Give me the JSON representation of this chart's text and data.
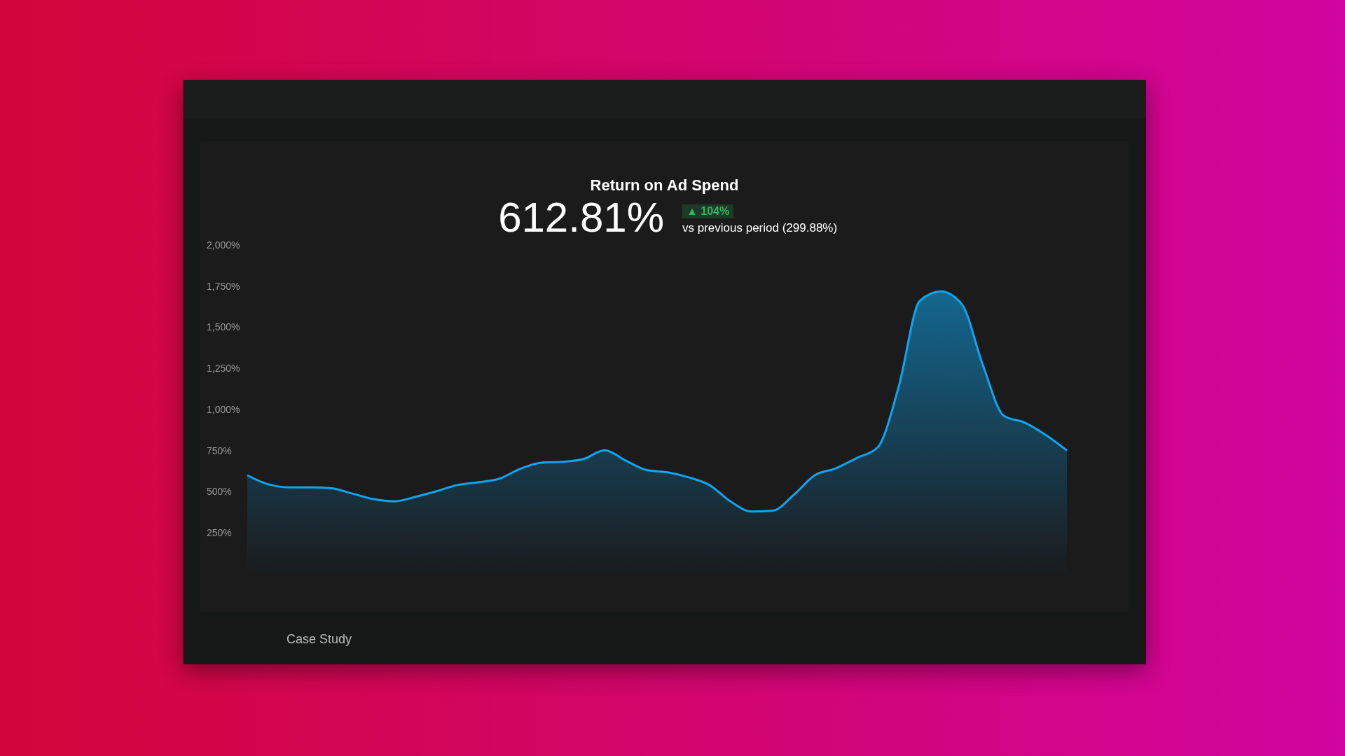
{
  "chart_data": {
    "type": "area",
    "title": "Return on Ad Spend",
    "subtitle": "612.81%",
    "annotations": [
      "▲ 104%",
      "vs previous period (299.88%)",
      "Case Study"
    ],
    "categories": [
      null,
      null,
      null,
      null,
      null,
      null,
      null,
      null,
      null,
      null,
      null,
      null,
      null,
      null,
      null,
      null,
      null,
      null,
      null,
      null,
      null,
      null,
      null,
      null,
      null,
      null,
      null,
      null,
      null,
      null,
      null,
      null,
      null,
      null,
      null,
      null,
      null,
      null,
      null,
      null
    ],
    "series": [
      {
        "color": "#0ea5f0",
        "values": [
          600,
          545,
          527,
          527,
          521,
          489,
          455,
          442,
          469,
          503,
          541,
          557,
          580,
          640,
          677,
          682,
          699,
          752,
          690,
          632,
          618,
          588,
          540,
          440,
          380,
          385,
          480,
          600,
          642,
          705,
          770,
          1140,
          1660,
          1718,
          1640,
          1270,
          962,
          920,
          845,
          751
        ]
      }
    ],
    "ylim": [
      0,
      2000
    ],
    "yticks": [
      {
        "value": 250,
        "label": "250%"
      },
      {
        "value": 500,
        "label": "500%"
      },
      {
        "value": 750,
        "label": "750%"
      },
      {
        "value": 1000,
        "label": "1,000%"
      },
      {
        "value": 1250,
        "label": "1,250%"
      },
      {
        "value": 1500,
        "label": "1,500%"
      },
      {
        "value": 1750,
        "label": "1,750%"
      },
      {
        "value": 2000,
        "label": "2,000%"
      }
    ],
    "tick_labels": "y",
    "grid": false,
    "legend": false,
    "marker": "none",
    "line_style": "solid"
  }
}
